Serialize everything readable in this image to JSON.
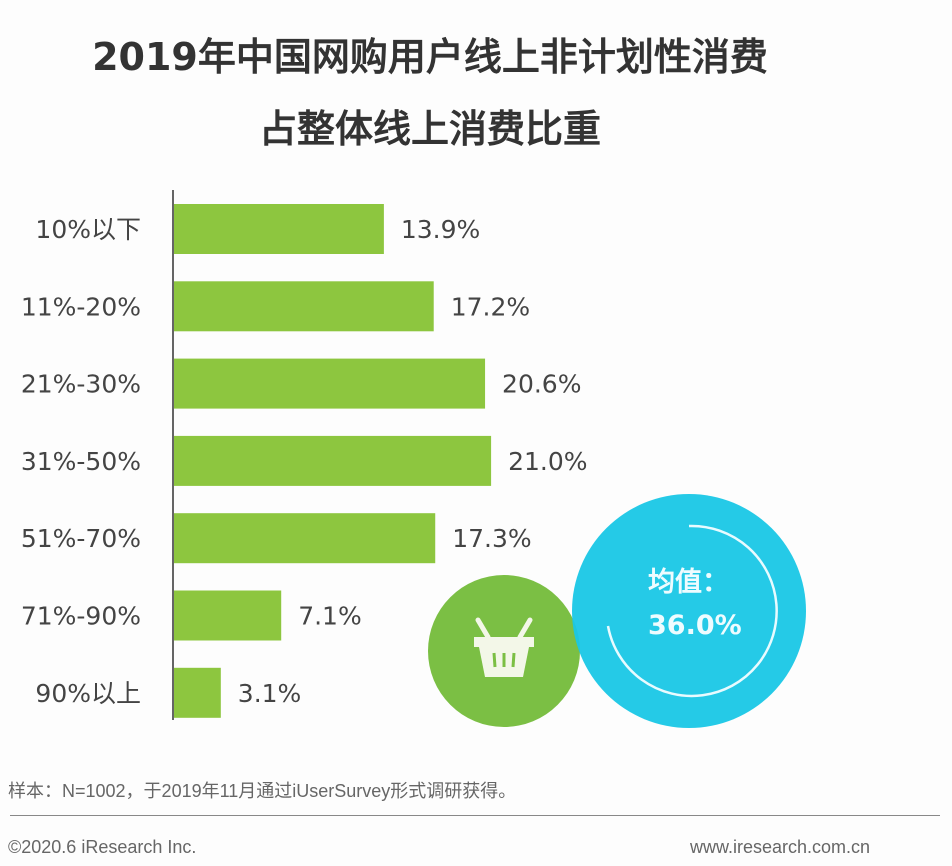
{
  "title_line1": "2019年中国网购用户线上非计划性消费",
  "title_line2": "占整体线上消费比重",
  "chart_data": {
    "type": "bar",
    "orientation": "horizontal",
    "categories": [
      "10%以下",
      "11%-20%",
      "21%-30%",
      "31%-50%",
      "51%-70%",
      "71%-90%",
      "90%以上"
    ],
    "values": [
      13.9,
      17.2,
      20.6,
      21.0,
      17.3,
      7.1,
      3.1
    ],
    "data_labels": [
      "13.9%",
      "17.2%",
      "20.6%",
      "21.0%",
      "17.3%",
      "7.1%",
      "3.1%"
    ],
    "bar_color": "#8dc63f",
    "grid": false
  },
  "average": {
    "label": "均值：",
    "value": "36.0%",
    "color": "#19c7e6"
  },
  "basket_circle_color": "#7bbf44",
  "basket_icon": "shopping-basket-icon",
  "footer": {
    "note": "样本：N=1002，于2019年11月通过iUserSurvey形式调研获得。",
    "copyright": "©2020.6 iResearch Inc.",
    "website": "www.iresearch.com.cn"
  }
}
